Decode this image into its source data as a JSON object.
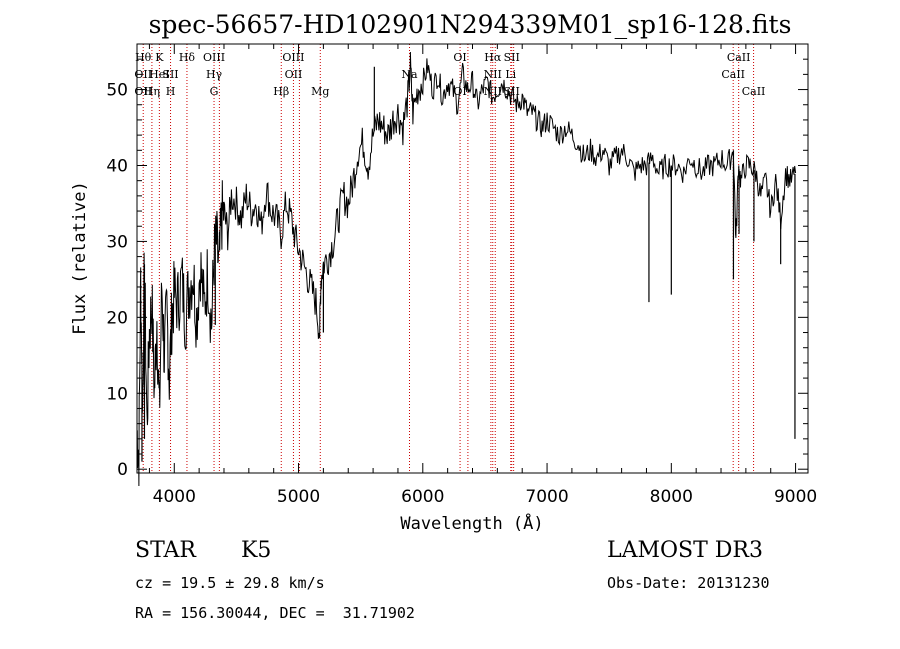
{
  "chart_data": {
    "type": "line",
    "title": "spec-56657-HD102901N294339M01_sp16-128.fits",
    "xlabel": "Wavelength (Å)",
    "ylabel": "Flux (relative)",
    "xlim": [
      3700,
      9100
    ],
    "ylim": [
      -0.5,
      56
    ],
    "x_ticks": [
      4000,
      5000,
      6000,
      7000,
      8000,
      9000
    ],
    "y_ticks": [
      0,
      10,
      20,
      30,
      40,
      50
    ],
    "grid": false,
    "series": [
      {
        "color": "#000000",
        "x": [
          3700,
          3715,
          3730,
          3745,
          3760,
          3780,
          3800,
          3820,
          3840,
          3860,
          3880,
          3900,
          3920,
          3940,
          3960,
          3980,
          4000,
          4030,
          4060,
          4090,
          4120,
          4150,
          4180,
          4210,
          4240,
          4270,
          4300,
          4320,
          4340,
          4360,
          4380,
          4400,
          4430,
          4460,
          4500,
          4540,
          4580,
          4620,
          4660,
          4700,
          4740,
          4780,
          4820,
          4860,
          4900,
          4940,
          4980,
          5020,
          5060,
          5100,
          5140,
          5170,
          5180,
          5200,
          5240,
          5280,
          5320,
          5360,
          5400,
          5440,
          5480,
          5520,
          5560,
          5600,
          5640,
          5680,
          5720,
          5760,
          5800,
          5840,
          5880,
          5900,
          5920,
          5960,
          6000,
          6040,
          6080,
          6120,
          6160,
          6200,
          6240,
          6280,
          6320,
          6360,
          6400,
          6440,
          6480,
          6520,
          6560,
          6600,
          6640,
          6680,
          6720,
          6760,
          6800,
          6840,
          6880,
          6920,
          6960,
          7000,
          7050,
          7100,
          7150,
          7200,
          7250,
          7300,
          7350,
          7400,
          7450,
          7500,
          7550,
          7600,
          7650,
          7700,
          7750,
          7800,
          7850,
          7900,
          7950,
          8000,
          8050,
          8100,
          8150,
          8200,
          8250,
          8300,
          8350,
          8400,
          8450,
          8500,
          8520,
          8540,
          8560,
          8600,
          8640,
          8680,
          8720,
          8760,
          8800,
          8840,
          8880,
          8920,
          8960,
          9000
        ],
        "y": [
          5,
          2,
          25,
          8,
          27,
          6,
          18,
          22,
          10,
          20,
          7,
          24,
          15,
          21,
          12,
          20,
          23,
          22,
          25,
          20,
          24,
          26,
          20,
          27,
          21,
          26,
          19,
          28,
          30,
          26,
          33,
          34,
          31,
          36,
          35,
          33,
          36,
          34,
          35,
          32,
          37,
          34,
          33,
          31,
          35,
          33,
          30,
          28,
          26,
          24,
          22,
          18,
          25,
          27,
          28,
          30,
          33,
          36,
          35,
          38,
          42,
          43,
          40,
          44,
          46,
          45,
          44,
          46,
          47,
          45,
          49,
          53,
          47,
          50,
          51,
          53,
          50,
          52,
          49,
          51,
          50,
          48,
          52,
          50,
          51,
          48,
          50,
          51,
          49,
          50,
          51,
          50,
          49,
          48,
          49,
          47,
          47,
          46,
          45,
          46,
          45,
          44,
          45,
          44,
          43,
          41,
          42,
          41,
          42,
          40,
          41,
          42,
          41,
          39,
          40,
          40,
          41,
          39,
          40,
          40,
          40,
          39,
          41,
          40,
          39,
          40,
          40,
          41,
          40,
          42,
          30,
          40,
          38,
          40,
          40,
          39,
          36,
          38,
          34,
          38,
          33,
          39,
          38,
          39
        ]
      }
    ],
    "spikes": [
      {
        "x": 3740,
        "y": 1
      },
      {
        "x": 3760,
        "y": 4
      },
      {
        "x": 4330,
        "y": 19
      },
      {
        "x": 5200,
        "y": 18
      },
      {
        "x": 5610,
        "y": 53
      },
      {
        "x": 7820,
        "y": 22
      },
      {
        "x": 8000,
        "y": 23
      },
      {
        "x": 8500,
        "y": 25
      },
      {
        "x": 8545,
        "y": 31
      },
      {
        "x": 8665,
        "y": 30
      },
      {
        "x": 8880,
        "y": 27
      },
      {
        "x": 8995,
        "y": 4
      }
    ],
    "line_markers": [
      {
        "x": 3750,
        "labels": [
          "Hθ",
          "OII",
          "OII"
        ]
      },
      {
        "x": 3820,
        "labels": [
          "",
          "",
          "Hη"
        ]
      },
      {
        "x": 3880,
        "labels": [
          "K",
          "HeI",
          ""
        ]
      },
      {
        "x": 3970,
        "labels": [
          "",
          "SII",
          "H"
        ]
      },
      {
        "x": 4102,
        "labels": [
          "Hδ"
        ]
      },
      {
        "x": 4320,
        "labels": [
          "OIII",
          "Hγ",
          "G"
        ]
      },
      {
        "x": 4363,
        "labels": []
      },
      {
        "x": 4861,
        "labels": [
          "",
          "",
          "Hβ"
        ]
      },
      {
        "x": 4959,
        "labels": [
          "OIII",
          "OII"
        ]
      },
      {
        "x": 5007,
        "labels": []
      },
      {
        "x": 5175,
        "labels": [
          "",
          "",
          "Mg"
        ]
      },
      {
        "x": 5893,
        "labels": [
          "",
          "Na"
        ]
      },
      {
        "x": 6300,
        "labels": [
          "OI",
          "",
          "OI"
        ]
      },
      {
        "x": 6363,
        "labels": []
      },
      {
        "x": 6548,
        "labels": []
      },
      {
        "x": 6563,
        "labels": [
          "Hα",
          "NII",
          "NII"
        ]
      },
      {
        "x": 6583,
        "labels": []
      },
      {
        "x": 6708,
        "labels": [
          "",
          "Li"
        ]
      },
      {
        "x": 6716,
        "labels": [
          "SII",
          "",
          "SII"
        ]
      },
      {
        "x": 6731,
        "labels": []
      },
      {
        "x": 8498,
        "labels": [
          "",
          "CaII"
        ]
      },
      {
        "x": 8542,
        "labels": [
          "CaII"
        ]
      },
      {
        "x": 8662,
        "labels": [
          "",
          "",
          "CaII"
        ]
      }
    ],
    "marker_color": "#cc0000"
  },
  "info": {
    "object_class": "STAR",
    "subclass": "K5",
    "survey": "LAMOST DR3",
    "redshift_line": "cz = 19.5 ± 29.8 km/s",
    "obs_date_line": "Obs-Date: 20131230",
    "coords_line": "RA = 156.30044, DEC =  31.71902"
  }
}
